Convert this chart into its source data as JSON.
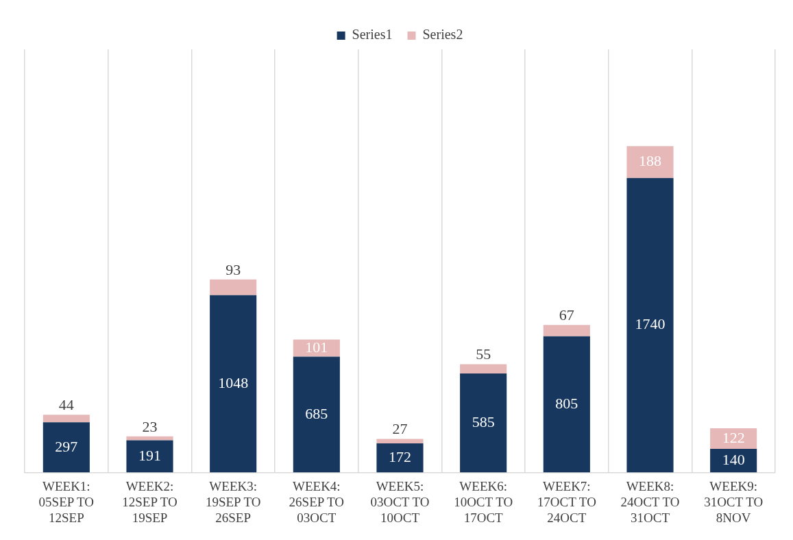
{
  "chart_data": {
    "type": "bar",
    "stacked": true,
    "categories": [
      "WEEK1: 05SEP TO 12SEP",
      "WEEK2: 12SEP TO 19SEP",
      "WEEK3: 19SEP TO 26SEP",
      "WEEK4: 26SEP TO 03OCT",
      "WEEK5: 03OCT TO 10OCT",
      "WEEK6: 10OCT TO 17OCT",
      "WEEK7: 17OCT TO 24OCT",
      "WEEK8: 24OCT TO 31OCT",
      "WEEK9: 31OCT TO 8NOV"
    ],
    "series": [
      {
        "name": "Series1",
        "color": "#17375e",
        "values": [
          297,
          191,
          1048,
          685,
          172,
          585,
          805,
          1740,
          140
        ]
      },
      {
        "name": "Series2",
        "color": "#e6b9b8",
        "values": [
          44,
          23,
          93,
          101,
          27,
          55,
          67,
          188,
          122
        ]
      }
    ],
    "data_labels": true,
    "grid": "x",
    "legend": "top",
    "tick_labels": "x"
  }
}
